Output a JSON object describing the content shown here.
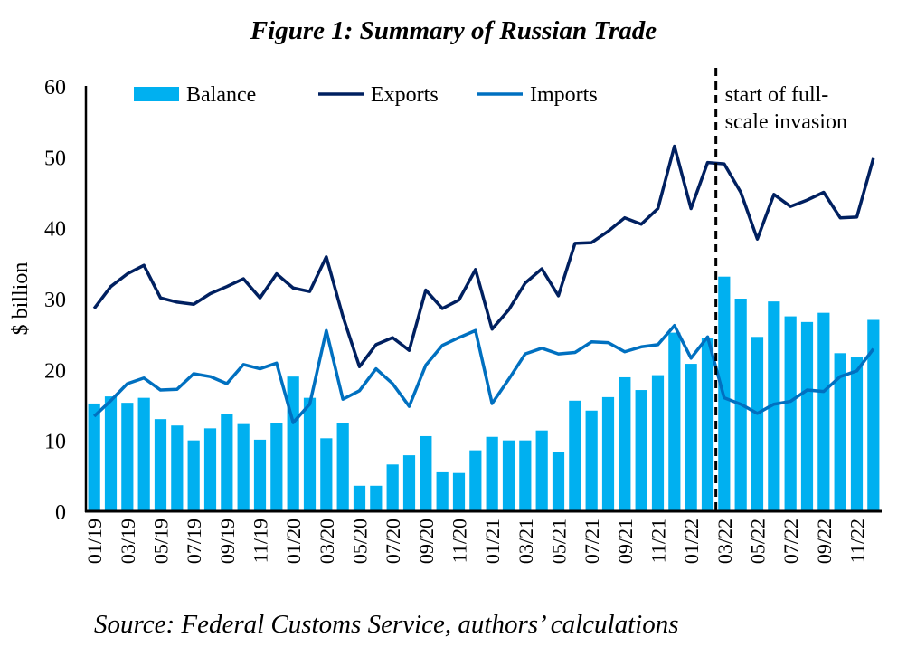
{
  "chart_data": {
    "type": "bar",
    "title": "Figure 1: Summary of Russian Trade",
    "source": "Source: Federal Customs Service, authors’ calculations",
    "ylabel": "$ billion",
    "xlabel": "",
    "ylim": [
      0,
      60
    ],
    "yticks": [
      0,
      10,
      20,
      30,
      40,
      50,
      60
    ],
    "grid": false,
    "legend_position": "top-left",
    "annotation": {
      "lines": [
        "start of full-",
        "scale invasion"
      ],
      "between": [
        "02/22",
        "03/22"
      ]
    },
    "categories": [
      "01/19",
      "02/19",
      "03/19",
      "04/19",
      "05/19",
      "06/19",
      "07/19",
      "08/19",
      "09/19",
      "10/19",
      "11/19",
      "12/19",
      "01/20",
      "02/20",
      "03/20",
      "04/20",
      "05/20",
      "06/20",
      "07/20",
      "08/20",
      "09/20",
      "10/20",
      "11/20",
      "12/20",
      "01/21",
      "02/21",
      "03/21",
      "04/21",
      "05/21",
      "06/21",
      "07/21",
      "08/21",
      "09/21",
      "10/21",
      "11/21",
      "12/21",
      "01/22",
      "02/22",
      "03/22",
      "04/22",
      "05/22",
      "06/22",
      "07/22",
      "08/22",
      "09/22",
      "10/22",
      "11/22",
      "12/22"
    ],
    "tick_labels": [
      "01/19",
      "03/19",
      "05/19",
      "07/19",
      "09/19",
      "11/19",
      "01/20",
      "03/20",
      "05/20",
      "07/20",
      "09/20",
      "11/20",
      "01/21",
      "03/21",
      "05/21",
      "07/21",
      "09/21",
      "11/21",
      "01/22",
      "03/22",
      "05/22",
      "07/22",
      "09/22",
      "11/22"
    ],
    "series": [
      {
        "name": "Balance",
        "kind": "bar",
        "color": "#00b0f0",
        "values": [
          15.2,
          16.2,
          15.3,
          16.0,
          13.0,
          12.1,
          10.0,
          11.7,
          13.7,
          12.3,
          10.1,
          12.5,
          19.0,
          16.0,
          10.3,
          12.4,
          3.6,
          3.6,
          6.6,
          7.9,
          10.6,
          5.5,
          5.4,
          8.6,
          10.5,
          10.0,
          10.0,
          11.4,
          8.4,
          15.6,
          14.2,
          16.1,
          18.9,
          17.1,
          19.2,
          25.2,
          20.8,
          24.5,
          33.1,
          30.0,
          24.6,
          29.6,
          27.5,
          26.7,
          28.0,
          22.3,
          21.7,
          27.0
        ]
      },
      {
        "name": "Exports",
        "kind": "line",
        "color": "#002060",
        "values": [
          28.6,
          31.7,
          33.5,
          34.7,
          30.1,
          29.5,
          29.2,
          30.7,
          31.7,
          32.8,
          30.1,
          33.5,
          31.5,
          31.0,
          35.9,
          27.5,
          20.4,
          23.5,
          24.5,
          22.7,
          31.2,
          28.6,
          29.8,
          34.1,
          25.7,
          28.4,
          32.2,
          34.2,
          30.4,
          37.8,
          37.9,
          39.5,
          41.4,
          40.5,
          42.7,
          51.5,
          42.7,
          49.2,
          49.0,
          45.0,
          38.4,
          44.7,
          43.0,
          43.9,
          45.0,
          41.4,
          41.5,
          49.8
        ]
      },
      {
        "name": "Imports",
        "kind": "line",
        "color": "#0070c0",
        "values": [
          13.4,
          15.6,
          18.0,
          18.8,
          17.1,
          17.2,
          19.4,
          19.0,
          18.0,
          20.7,
          20.1,
          20.9,
          12.5,
          15.1,
          25.5,
          15.8,
          17.0,
          20.1,
          18.0,
          14.8,
          20.6,
          23.4,
          24.5,
          25.5,
          15.2,
          18.6,
          22.2,
          23.0,
          22.2,
          22.4,
          23.9,
          23.8,
          22.5,
          23.2,
          23.5,
          26.2,
          21.6,
          24.6,
          16.0,
          15.1,
          13.8,
          15.1,
          15.5,
          17.1,
          16.9,
          19.0,
          19.8,
          22.9
        ]
      }
    ]
  }
}
